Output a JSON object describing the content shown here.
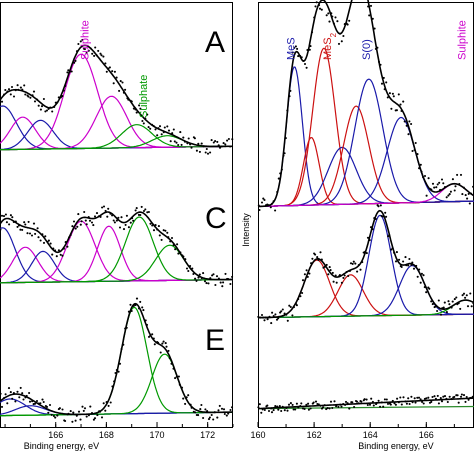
{
  "chart_data": [
    {
      "type": "scatter",
      "panel": "left",
      "xlabel": "Binding energy, eV",
      "xticks": [
        166,
        168,
        170,
        172
      ],
      "xlim": [
        163.8,
        173
      ],
      "subpanels": [
        {
          "letter": "A",
          "annotations": [
            {
              "text": "Sulphite",
              "color": "#cc00cc",
              "x": 167.3
            },
            {
              "text": "Sulphate",
              "color": "#009900",
              "x": 169.6
            }
          ],
          "peaks": [
            {
              "center": 163.9,
              "height": 0.38,
              "width": 0.55,
              "color": "#1a1aaa"
            },
            {
              "center": 164.7,
              "height": 0.28,
              "width": 0.5,
              "color": "#cc00cc"
            },
            {
              "center": 165.4,
              "height": 0.25,
              "width": 0.5,
              "color": "#1a1aaa"
            },
            {
              "center": 167.0,
              "height": 0.82,
              "width": 0.65,
              "color": "#cc00cc"
            },
            {
              "center": 168.2,
              "height": 0.45,
              "width": 0.6,
              "color": "#cc00cc"
            },
            {
              "center": 169.2,
              "height": 0.2,
              "width": 0.6,
              "color": "#009900"
            },
            {
              "center": 170.4,
              "height": 0.1,
              "width": 0.6,
              "color": "#009900"
            }
          ]
        },
        {
          "letter": "C",
          "annotations": [],
          "peaks": [
            {
              "center": 163.9,
              "height": 0.5,
              "width": 0.5,
              "color": "#1a1aaa"
            },
            {
              "center": 164.8,
              "height": 0.32,
              "width": 0.5,
              "color": "#cc00cc"
            },
            {
              "center": 165.5,
              "height": 0.28,
              "width": 0.45,
              "color": "#1a1aaa"
            },
            {
              "center": 167.0,
              "height": 0.55,
              "width": 0.55,
              "color": "#cc00cc"
            },
            {
              "center": 168.1,
              "height": 0.5,
              "width": 0.45,
              "color": "#cc00cc"
            },
            {
              "center": 169.3,
              "height": 0.58,
              "width": 0.55,
              "color": "#009900"
            },
            {
              "center": 170.5,
              "height": 0.32,
              "width": 0.55,
              "color": "#009900"
            }
          ]
        },
        {
          "letter": "E",
          "annotations": [],
          "peaks": [
            {
              "center": 164.2,
              "height": 0.14,
              "width": 0.6,
              "color": "#1a1aaa"
            },
            {
              "center": 165.0,
              "height": 0.08,
              "width": 0.6,
              "color": "#1a1aaa"
            },
            {
              "center": 169.1,
              "height": 0.9,
              "width": 0.5,
              "color": "#009900"
            },
            {
              "center": 170.3,
              "height": 0.5,
              "width": 0.5,
              "color": "#009900"
            }
          ]
        }
      ]
    },
    {
      "type": "scatter",
      "panel": "right",
      "xlabel": "Binding energy, eV",
      "ylabel": "Intensity",
      "xticks": [
        160,
        162,
        164,
        166
      ],
      "xlim": [
        160,
        167.7
      ],
      "subpanels": [
        {
          "letter": "",
          "annotations": [
            {
              "text": "MeS",
              "color": "#1a1aaa",
              "x": 161.3
            },
            {
              "text": "MeS2",
              "color": "#cc1111",
              "x": 162.6
            },
            {
              "text": "S(0)",
              "color": "#1a1aaa",
              "x": 164.0
            },
            {
              "text": "Sulphite",
              "color": "#cc00cc",
              "x": 167.4
            }
          ],
          "peaks": [
            {
              "center": 161.3,
              "height": 0.78,
              "width": 0.28,
              "color": "#1a1aaa"
            },
            {
              "center": 161.9,
              "height": 0.38,
              "width": 0.28,
              "color": "#cc1111"
            },
            {
              "center": 162.35,
              "height": 0.88,
              "width": 0.4,
              "color": "#cc1111"
            },
            {
              "center": 163.0,
              "height": 0.32,
              "width": 0.5,
              "color": "#1a1aaa"
            },
            {
              "center": 163.5,
              "height": 0.55,
              "width": 0.45,
              "color": "#cc1111"
            },
            {
              "center": 163.95,
              "height": 0.7,
              "width": 0.5,
              "color": "#1a1aaa"
            },
            {
              "center": 165.1,
              "height": 0.48,
              "width": 0.5,
              "color": "#1a1aaa"
            },
            {
              "center": 167.0,
              "height": 0.1,
              "width": 0.45,
              "color": "#cc00cc"
            }
          ]
        },
        {
          "letter": "",
          "annotations": [],
          "peaks": [
            {
              "center": 162.1,
              "height": 0.48,
              "width": 0.45,
              "color": "#cc1111"
            },
            {
              "center": 163.3,
              "height": 0.35,
              "width": 0.45,
              "color": "#cc1111"
            },
            {
              "center": 164.35,
              "height": 0.85,
              "width": 0.4,
              "color": "#1a1aaa"
            },
            {
              "center": 165.5,
              "height": 0.42,
              "width": 0.45,
              "color": "#1a1aaa"
            },
            {
              "center": 167.4,
              "height": 0.12,
              "width": 0.45,
              "color": "#009900"
            }
          ]
        },
        {
          "letter": "",
          "annotations": [],
          "peaks": []
        }
      ]
    }
  ],
  "colors": {
    "envelope": "#000000",
    "points": "#000000",
    "background": "#2a8a2a"
  }
}
